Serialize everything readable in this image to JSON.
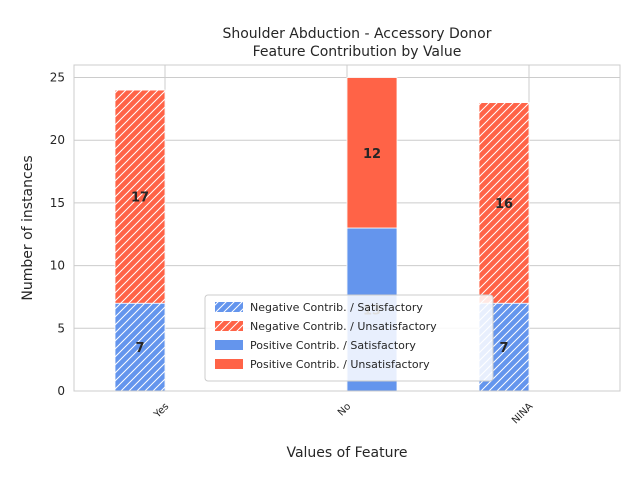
{
  "chart_data": {
    "type": "bar",
    "stacked": true,
    "title": "Shoulder Abduction - Accessory Donor",
    "subtitle": "Feature Contribution by Value",
    "xlabel": "Values of Feature",
    "ylabel": "Number of instances",
    "categories": [
      "Yes",
      "No",
      "NINA"
    ],
    "ylim": [
      0,
      26
    ],
    "yticks": [
      0,
      5,
      10,
      15,
      20,
      25
    ],
    "grid": true,
    "legend_position": "bottom-center",
    "series": [
      {
        "name": "Negative Contrib. / Satisfactory",
        "values": [
          7,
          0,
          7
        ],
        "color": "#6495ED",
        "hatch": true,
        "group": "negative"
      },
      {
        "name": "Negative Contrib. / Unsatisfactory",
        "values": [
          17,
          0,
          16
        ],
        "color": "#FF6347",
        "hatch": true,
        "group": "negative"
      },
      {
        "name": "Positive Contrib. / Satisfactory",
        "values": [
          0,
          13,
          0
        ],
        "color": "#6495ED",
        "hatch": false,
        "group": "positive"
      },
      {
        "name": "Positive Contrib. / Unsatisfactory",
        "values": [
          0,
          12,
          0
        ],
        "color": "#FF6347",
        "hatch": false,
        "group": "positive"
      }
    ],
    "data_labels": [
      {
        "category": "Yes",
        "series": "Negative Contrib. / Satisfactory",
        "text": "7"
      },
      {
        "category": "Yes",
        "series": "Negative Contrib. / Unsatisfactory",
        "text": "17"
      },
      {
        "category": "No",
        "series": "Positive Contrib. / Satisfactory",
        "text": "13"
      },
      {
        "category": "No",
        "series": "Positive Contrib. / Unsatisfactory",
        "text": "12"
      },
      {
        "category": "NINA",
        "series": "Negative Contrib. / Satisfactory",
        "text": "7"
      },
      {
        "category": "NINA",
        "series": "Negative Contrib. / Unsatisfactory",
        "text": "16"
      }
    ]
  }
}
